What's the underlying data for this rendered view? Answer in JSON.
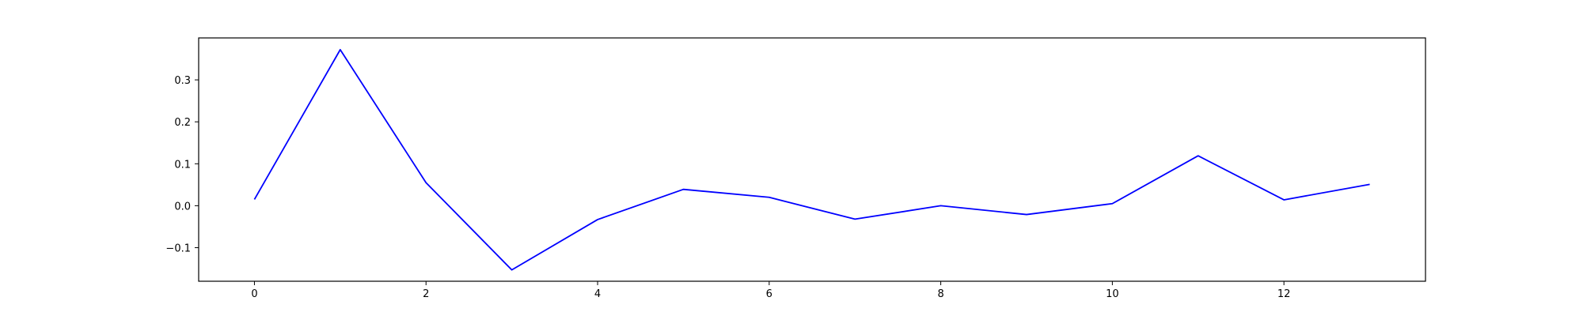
{
  "chart_data": {
    "type": "line",
    "title": "",
    "xlabel": "",
    "ylabel": "",
    "xlim": [
      -0.65,
      13.65
    ],
    "ylim": [
      -0.18,
      0.4
    ],
    "x_ticks": [
      0,
      2,
      4,
      6,
      8,
      10,
      12
    ],
    "y_ticks": [
      -0.1,
      0.0,
      0.1,
      0.2,
      0.3
    ],
    "x_tick_labels": [
      "0",
      "2",
      "4",
      "6",
      "8",
      "10",
      "12"
    ],
    "y_tick_labels": [
      "−0.1",
      "0.0",
      "0.1",
      "0.2",
      "0.3"
    ],
    "grid": false,
    "legend": "none",
    "series": [
      {
        "color": "#0000ff",
        "x": [
          0,
          1,
          2,
          3,
          4,
          5,
          6,
          7,
          8,
          9,
          10,
          11,
          12,
          13
        ],
        "values": [
          0.015,
          0.372,
          0.055,
          -0.153,
          -0.033,
          0.039,
          0.02,
          -0.032,
          0.0,
          -0.021,
          0.005,
          0.119,
          0.014,
          0.051
        ]
      }
    ]
  }
}
